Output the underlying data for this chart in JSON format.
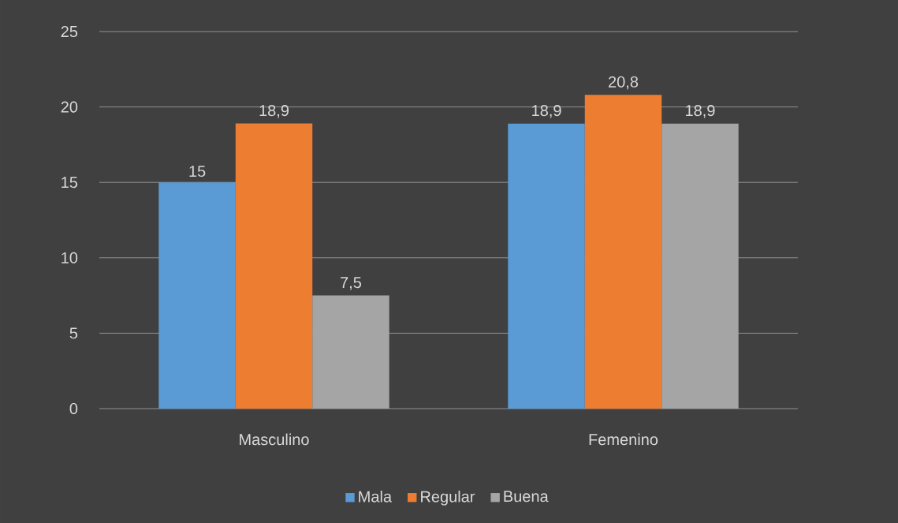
{
  "chart_data": {
    "type": "bar",
    "categories": [
      "Masculino",
      "Femenino"
    ],
    "series": [
      {
        "name": "Mala",
        "color": "#5b9bd5",
        "values": [
          15,
          18.9
        ],
        "value_labels": [
          "15",
          "18,9"
        ]
      },
      {
        "name": "Regular",
        "color": "#ed7d31",
        "values": [
          18.9,
          20.8
        ],
        "value_labels": [
          "18,9",
          "20,8"
        ]
      },
      {
        "name": "Buena",
        "color": "#a5a5a5",
        "values": [
          7.5,
          18.9
        ],
        "value_labels": [
          "7,5",
          "18,9"
        ]
      }
    ],
    "ylim": [
      0,
      25
    ],
    "yticks": [
      0,
      5,
      10,
      15,
      20,
      25
    ],
    "grid": "y",
    "legend": "bottom"
  }
}
